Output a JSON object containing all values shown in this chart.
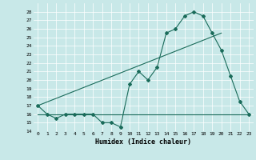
{
  "xlabel": "Humidex (Indice chaleur)",
  "ylabel": "",
  "bg_color": "#c8e8e8",
  "line_color": "#1a6b5a",
  "xlim": [
    -0.5,
    23.5
  ],
  "ylim": [
    14,
    29
  ],
  "yticks": [
    14,
    15,
    16,
    17,
    18,
    19,
    20,
    21,
    22,
    23,
    24,
    25,
    26,
    27,
    28
  ],
  "xticks": [
    0,
    1,
    2,
    3,
    4,
    5,
    6,
    7,
    8,
    9,
    10,
    11,
    12,
    13,
    14,
    15,
    16,
    17,
    18,
    19,
    20,
    21,
    22,
    23
  ],
  "series1_x": [
    0,
    1,
    2,
    3,
    4,
    5,
    6,
    7,
    8,
    9,
    10,
    11,
    12,
    13,
    14,
    15,
    16,
    17,
    18,
    19,
    20,
    21,
    22,
    23
  ],
  "series1_y": [
    17,
    16,
    15.5,
    16,
    16,
    16,
    16,
    15,
    15,
    14.5,
    19.5,
    21,
    20,
    21.5,
    25.5,
    26,
    27.5,
    28,
    27.5,
    25.5,
    23.5,
    20.5,
    17.5,
    16
  ],
  "series2_x": [
    0,
    20
  ],
  "series2_y": [
    17,
    25.5
  ],
  "series3_x": [
    0,
    23
  ],
  "series3_y": [
    16,
    16
  ]
}
